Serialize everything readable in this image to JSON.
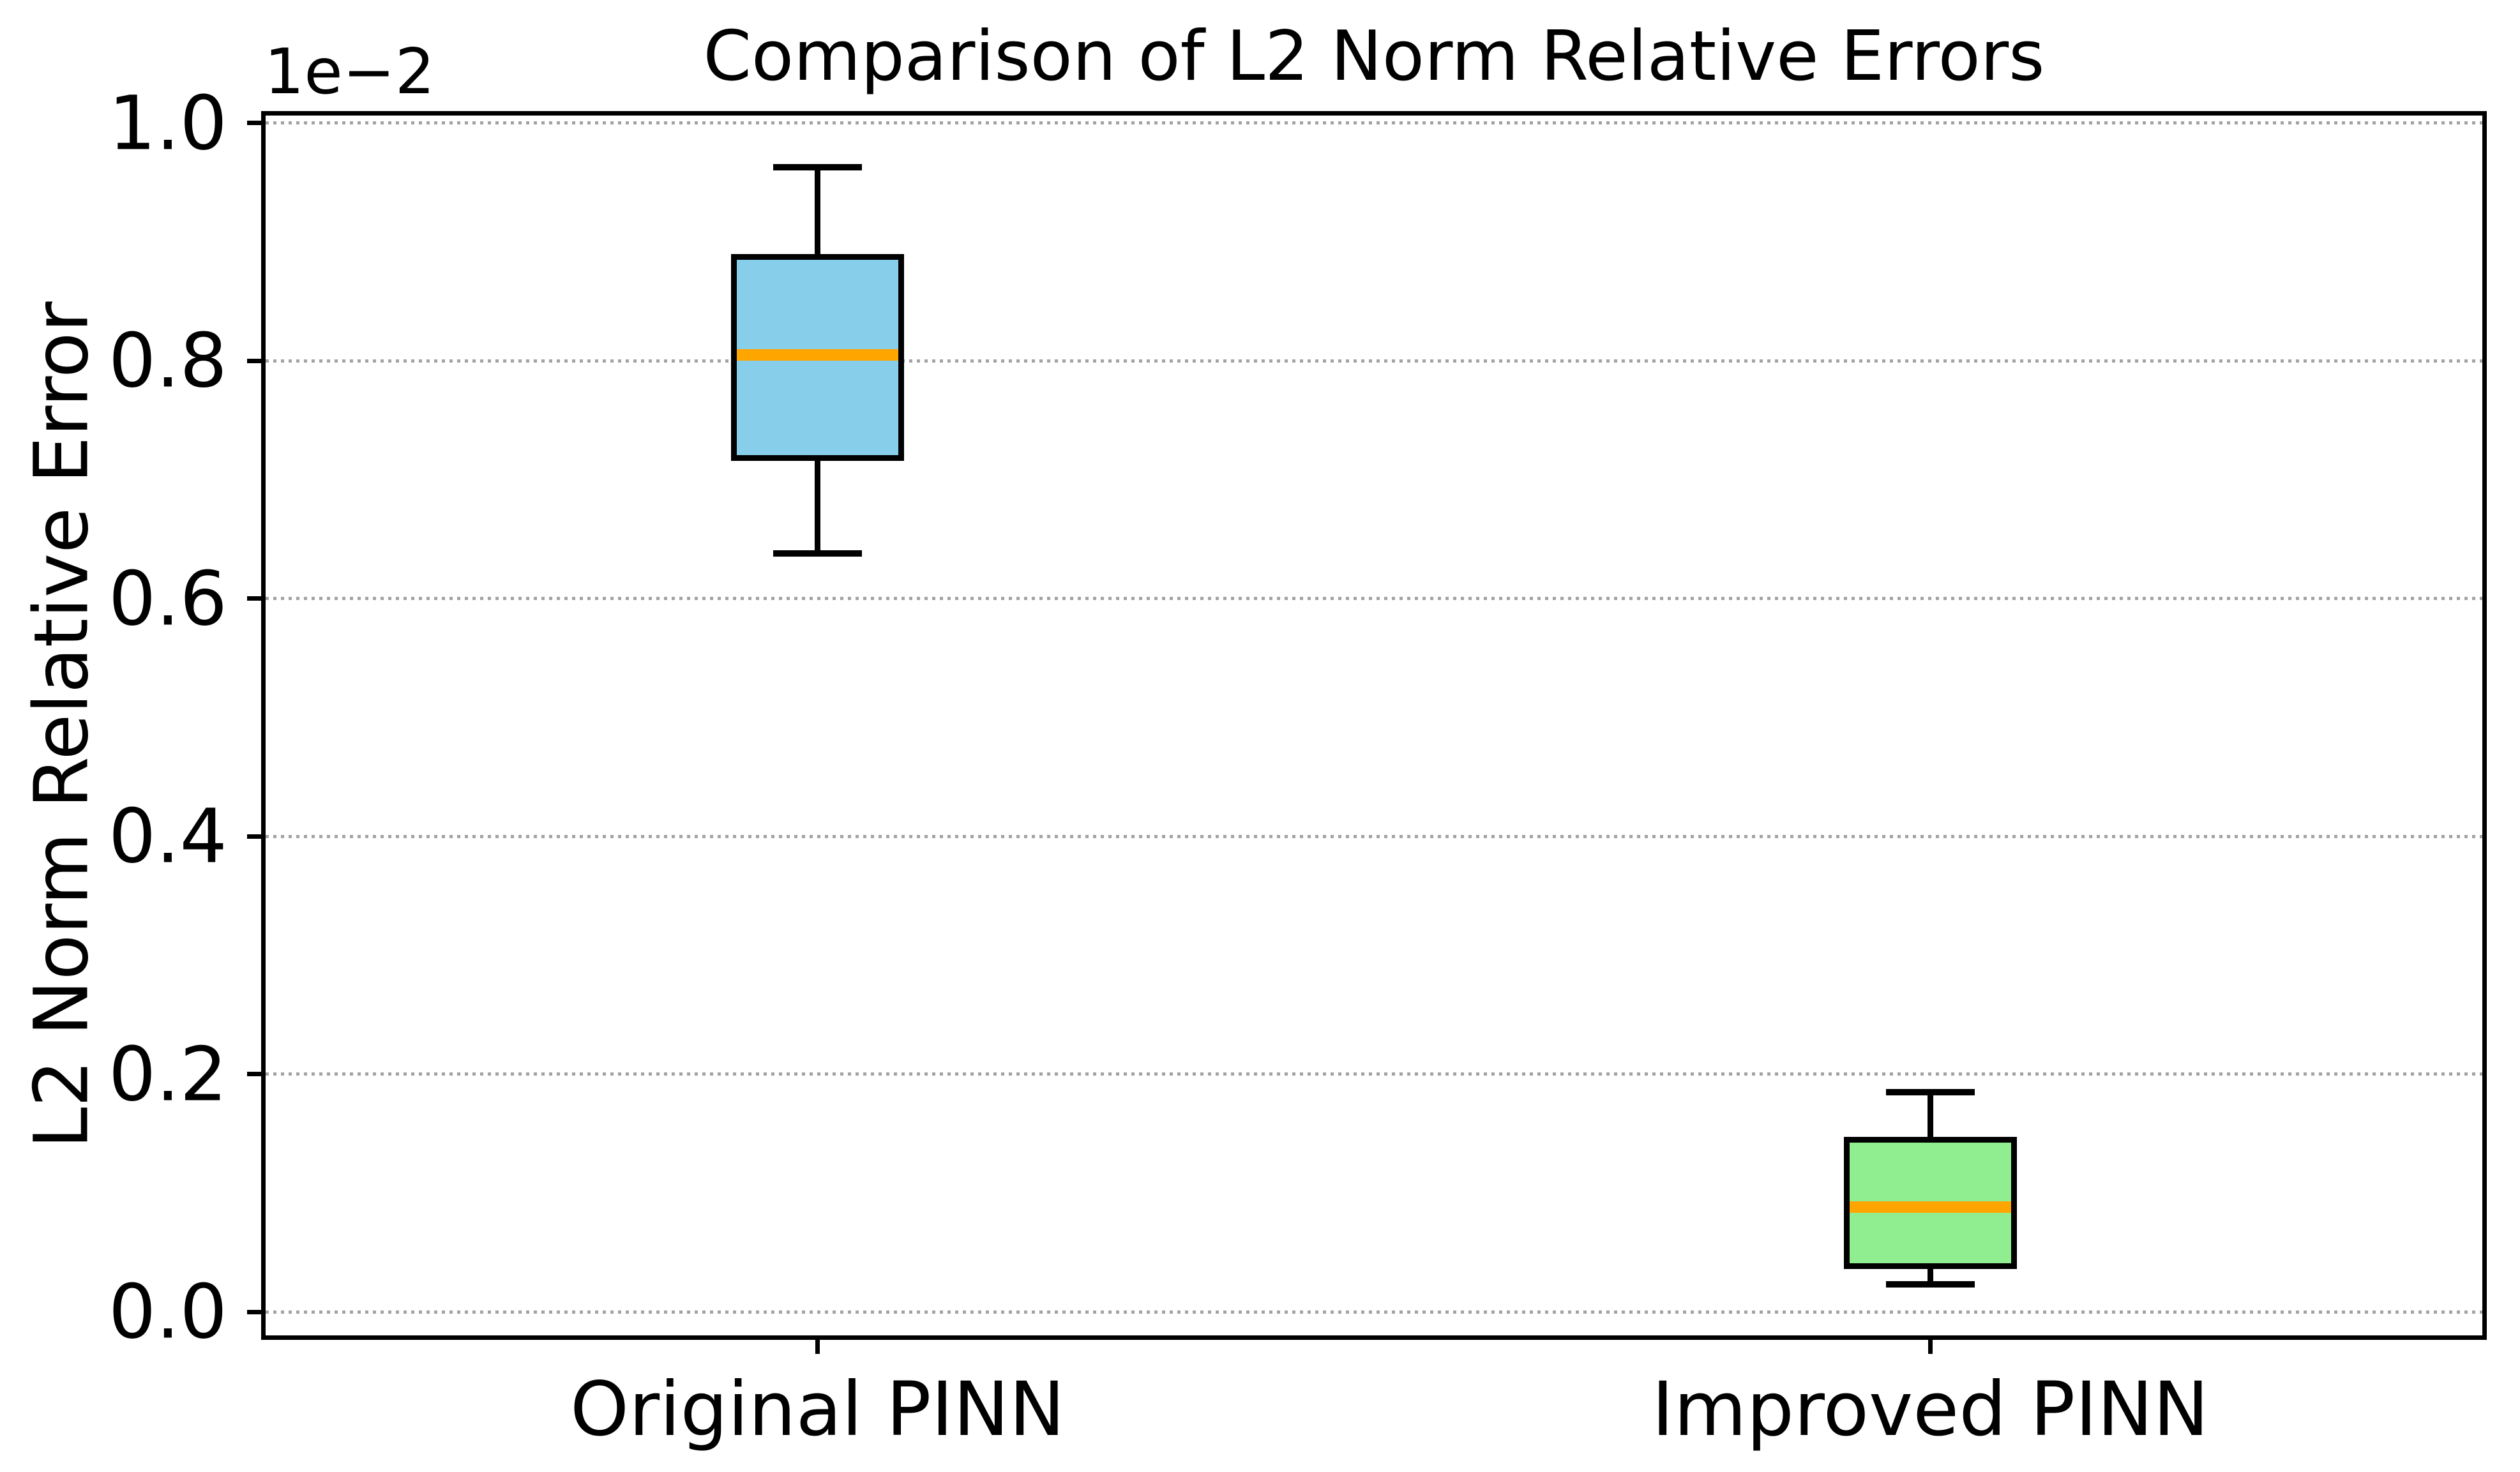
{
  "chart_data": {
    "type": "boxplot",
    "title": "Comparison of L2 Norm Relative Errors",
    "ylabel": "L2 Norm Relative Error",
    "y_offset_label": "1e−2",
    "categories": [
      "Original PINN",
      "Improved PINN"
    ],
    "yticks": [
      {
        "value": 1.0,
        "label": "1.0"
      },
      {
        "value": 0.8,
        "label": "0.8"
      },
      {
        "value": 0.6,
        "label": "0.6"
      },
      {
        "value": 0.4,
        "label": "0.4"
      },
      {
        "value": 0.2,
        "label": "0.2"
      },
      {
        "value": 0.0,
        "label": "0.0"
      }
    ],
    "ylim": [
      -0.0236,
      1.0102
    ],
    "xlim": [
      0.5,
      2.5
    ],
    "grid": {
      "axis": "y",
      "style": "dotted",
      "color": "#a3a3a3"
    },
    "series": [
      {
        "name": "Original PINN",
        "position": 1,
        "whislo": 0.638,
        "q1": 0.716,
        "med": 0.805,
        "q3": 0.89,
        "whishi": 0.963,
        "box_color": "#87CEEB"
      },
      {
        "name": "Improved PINN",
        "position": 2,
        "whislo": 0.023,
        "q1": 0.036,
        "med": 0.088,
        "q3": 0.147,
        "whishi": 0.185,
        "box_color": "#90EE90"
      }
    ],
    "median_color": "#FFA500",
    "box_width": 0.155,
    "cap_width": 0.08
  }
}
